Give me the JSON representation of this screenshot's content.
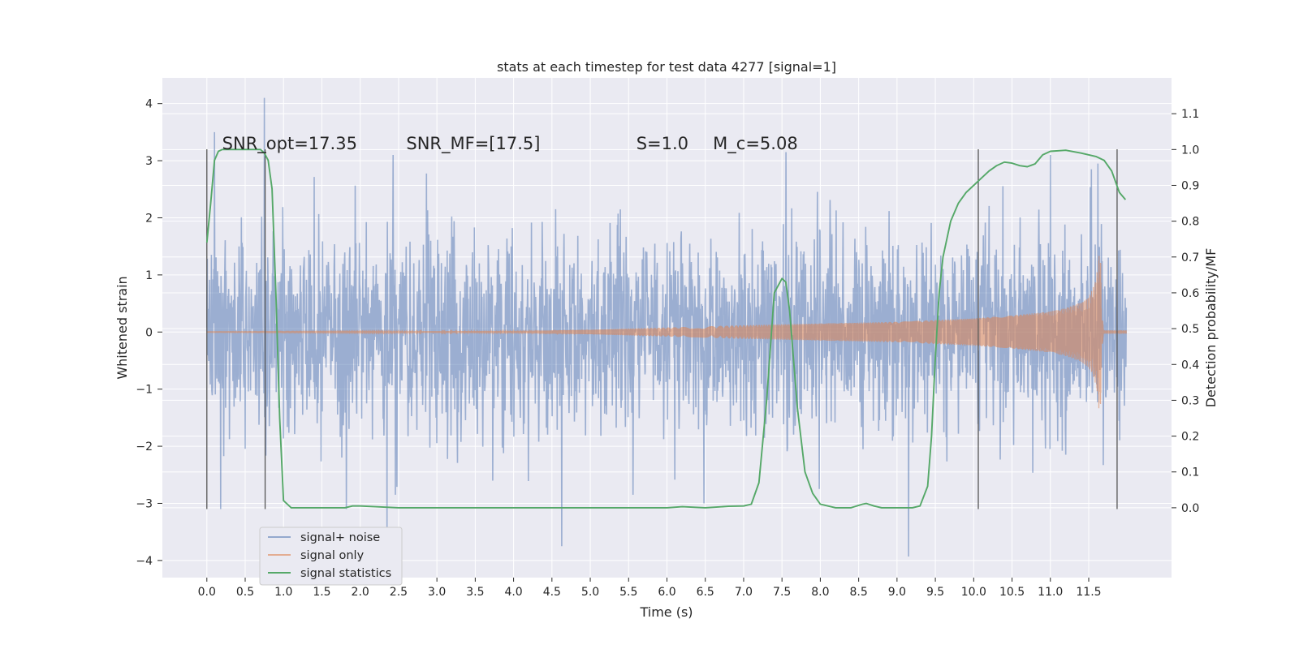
{
  "chart_data": {
    "type": "line",
    "title": "stats at each timestep for test data 4277 [signal=1]",
    "xlabel": "Time (s)",
    "ylabel_left": "Whitened strain",
    "ylabel_right": "Detection probability/MF",
    "xlim": [
      -0.58,
      12.58
    ],
    "ylim_left": [
      -4.3,
      4.45
    ],
    "ylim_right": [
      -0.195,
      1.2
    ],
    "xticks": [
      0.0,
      0.5,
      1.0,
      1.5,
      2.0,
      2.5,
      3.0,
      3.5,
      4.0,
      4.5,
      5.0,
      5.5,
      6.0,
      6.5,
      7.0,
      7.5,
      8.0,
      8.5,
      9.0,
      9.5,
      10.0,
      10.5,
      11.0,
      11.5
    ],
    "xtick_labels": [
      "0.0",
      "0.5",
      "1.0",
      "1.5",
      "2.0",
      "2.5",
      "3.0",
      "3.5",
      "4.0",
      "4.5",
      "5.0",
      "5.5",
      "6.0",
      "6.5",
      "7.0",
      "7.5",
      "8.0",
      "8.5",
      "9.0",
      "9.5",
      "10.0",
      "10.5",
      "11.0",
      "11.5"
    ],
    "yticks_left": [
      -4,
      -3,
      -2,
      -1,
      0,
      1,
      2,
      3,
      4
    ],
    "ytick_labels_left": [
      "−4",
      "−3",
      "−2",
      "−1",
      "0",
      "1",
      "2",
      "3",
      "4"
    ],
    "yticks_right": [
      0.0,
      0.1,
      0.2,
      0.3,
      0.4,
      0.5,
      0.6,
      0.7,
      0.8,
      0.9,
      1.0,
      1.1
    ],
    "ytick_labels_right": [
      "0.0",
      "0.1",
      "0.2",
      "0.3",
      "0.4",
      "0.5",
      "0.6",
      "0.7",
      "0.8",
      "0.9",
      "1.0",
      "1.1"
    ],
    "grid": true,
    "legend_position": "lower-left",
    "annotations": [
      {
        "text": "SNR_opt=17.35",
        "x": 0.2,
        "y": 3.3
      },
      {
        "text": "SNR_MF=[17.5]",
        "x": 2.6,
        "y": 3.3
      },
      {
        "text": "S=1.0",
        "x": 5.6,
        "y": 3.3
      },
      {
        "text": "M_c=5.08",
        "x": 6.6,
        "y": 3.3
      }
    ],
    "vertical_markers": {
      "x": [
        0.0,
        0.76,
        10.06,
        11.87
      ],
      "ymin": -3.1,
      "ymax": 3.2,
      "color": "#555555"
    },
    "series": [
      {
        "name": "signal+ noise",
        "axis": "left",
        "color": "#4c72b0",
        "description": "whitened noisy strain, time range 0 to 11.99 s",
        "x_range": [
          0.0,
          11.99
        ],
        "y_range": [
          -3.93,
          4.1
        ],
        "typical_amplitude": 1.35,
        "spikes": [
          {
            "x": 0.1,
            "y": 3.5
          },
          {
            "x": 0.75,
            "y": 4.1
          },
          {
            "x": 2.43,
            "y": 3.1
          },
          {
            "x": 2.35,
            "y": -3.5
          },
          {
            "x": 4.63,
            "y": -3.75
          },
          {
            "x": 9.15,
            "y": -3.93
          },
          {
            "x": 7.55,
            "y": 3.15
          },
          {
            "x": 11.0,
            "y": 3.1
          },
          {
            "x": 11.62,
            "y": 2.95
          },
          {
            "x": 0.18,
            "y": -3.1
          },
          {
            "x": 1.82,
            "y": -3.1
          },
          {
            "x": 6.48,
            "y": -3.0
          }
        ]
      },
      {
        "name": "signal only",
        "axis": "left",
        "color": "#dd8452",
        "description": "chirp envelope growing toward merger at ~11.65 s",
        "x": [
          0.0,
          2.0,
          4.0,
          5.0,
          6.0,
          7.0,
          8.0,
          9.0,
          9.5,
          10.0,
          10.5,
          11.0,
          11.2,
          11.4,
          11.5,
          11.55,
          11.6,
          11.63,
          11.65,
          11.67,
          11.7,
          12.0
        ],
        "envelope": [
          0.005,
          0.01,
          0.02,
          0.04,
          0.08,
          0.12,
          0.15,
          0.18,
          0.21,
          0.24,
          0.29,
          0.36,
          0.42,
          0.52,
          0.62,
          0.75,
          0.95,
          1.3,
          1.62,
          0.3,
          0.03,
          0.03
        ]
      },
      {
        "name": "signal statistics",
        "axis": "right",
        "color": "#55a868",
        "x": [
          0.0,
          0.05,
          0.1,
          0.15,
          0.2,
          0.3,
          0.4,
          0.5,
          0.6,
          0.7,
          0.75,
          0.8,
          0.85,
          0.9,
          0.95,
          1.0,
          1.1,
          1.5,
          1.8,
          1.9,
          2.0,
          2.5,
          3.0,
          4.0,
          5.0,
          5.5,
          6.0,
          6.2,
          6.5,
          6.8,
          7.0,
          7.1,
          7.2,
          7.3,
          7.4,
          7.5,
          7.55,
          7.6,
          7.7,
          7.8,
          7.9,
          8.0,
          8.2,
          8.4,
          8.55,
          8.6,
          8.7,
          8.8,
          9.0,
          9.2,
          9.3,
          9.4,
          9.45,
          9.5,
          9.55,
          9.6,
          9.7,
          9.8,
          9.9,
          10.0,
          10.1,
          10.2,
          10.3,
          10.4,
          10.5,
          10.6,
          10.7,
          10.8,
          10.9,
          11.0,
          11.2,
          11.4,
          11.6,
          11.7,
          11.8,
          11.9,
          11.98
        ],
        "y": [
          0.74,
          0.85,
          0.97,
          0.995,
          1.0,
          1.0,
          1.0,
          1.0,
          1.0,
          1.0,
          0.99,
          0.97,
          0.89,
          0.6,
          0.25,
          0.02,
          0.0,
          0.0,
          0.0,
          0.005,
          0.005,
          0.0,
          0.0,
          0.0,
          0.0,
          0.0,
          0.0,
          0.003,
          0.0,
          0.004,
          0.005,
          0.01,
          0.07,
          0.3,
          0.6,
          0.64,
          0.63,
          0.55,
          0.28,
          0.1,
          0.04,
          0.01,
          0.0,
          0.0,
          0.01,
          0.012,
          0.005,
          0.0,
          0.0,
          0.0,
          0.005,
          0.06,
          0.2,
          0.42,
          0.6,
          0.7,
          0.8,
          0.85,
          0.88,
          0.9,
          0.92,
          0.94,
          0.955,
          0.965,
          0.962,
          0.955,
          0.952,
          0.96,
          0.985,
          0.995,
          0.998,
          0.99,
          0.98,
          0.97,
          0.94,
          0.88,
          0.86
        ]
      }
    ]
  }
}
